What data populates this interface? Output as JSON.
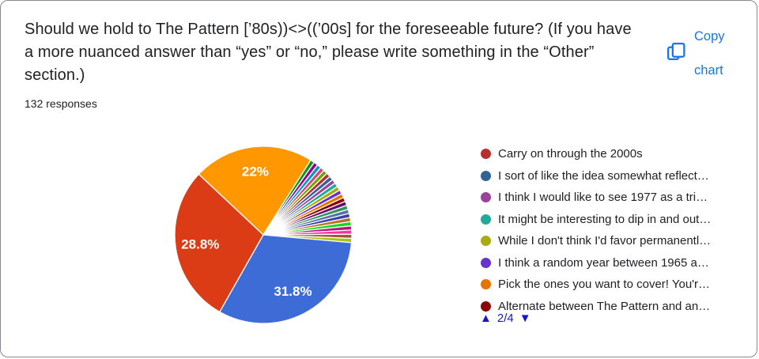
{
  "header": {
    "title_lines": [
      "Should we hold to The Pattern [’80s))<>((’00s]  for the foreseeable future? (If you have",
      "a more nuanced answer than “yes” or “no,” please write something in the “Other”",
      "section.)"
    ],
    "responses_label": "132 responses",
    "copy_chart_label": "Copy chart"
  },
  "chart_data": {
    "type": "pie",
    "title": "Should we hold to The Pattern [’80s))<>((’00s]  for the foreseeable future? (If you have a more nuanced answer than “yes” or “no,” please write something in the “Other” section.)",
    "total_responses": 132,
    "legend_position": "right",
    "label_color": "#ffffff",
    "start_angle_deg": -46.8,
    "slices": [
      {
        "pct": 22.0,
        "color": "#FF9800",
        "label_shown": "22%"
      },
      {
        "pct": 0.7565,
        "color": "#109618"
      },
      {
        "pct": 0.7565,
        "color": "#990099"
      },
      {
        "pct": 0.7565,
        "color": "#0099C6"
      },
      {
        "pct": 0.7565,
        "color": "#DD4477"
      },
      {
        "pct": 0.7565,
        "color": "#66AA00"
      },
      {
        "pct": 0.7565,
        "color": "#B82E2E"
      },
      {
        "pct": 0.7565,
        "color": "#316395"
      },
      {
        "pct": 0.7565,
        "color": "#994499"
      },
      {
        "pct": 0.7565,
        "color": "#22AA99"
      },
      {
        "pct": 0.7565,
        "color": "#AAAA11"
      },
      {
        "pct": 0.7565,
        "color": "#6633CC"
      },
      {
        "pct": 0.7565,
        "color": "#E67300"
      },
      {
        "pct": 0.7565,
        "color": "#8B0707"
      },
      {
        "pct": 0.7565,
        "color": "#651067"
      },
      {
        "pct": 0.7565,
        "color": "#329262"
      },
      {
        "pct": 0.7565,
        "color": "#5574A6"
      },
      {
        "pct": 0.7565,
        "color": "#3B3EAC"
      },
      {
        "pct": 0.7565,
        "color": "#B77322"
      },
      {
        "pct": 0.7565,
        "color": "#16D620"
      },
      {
        "pct": 0.7565,
        "color": "#B91383"
      },
      {
        "pct": 0.7565,
        "color": "#F4359E"
      },
      {
        "pct": 0.7565,
        "color": "#9C5935"
      },
      {
        "pct": 0.7565,
        "color": "#A9C413"
      },
      {
        "pct": 31.8,
        "color": "#3D6CD7",
        "label_shown": "31.8%"
      },
      {
        "pct": 28.8,
        "color": "#DB3C16",
        "label_shown": "28.8%"
      }
    ],
    "legend": {
      "page_label": "2/4",
      "up_icon": "▲",
      "down_icon": "▼",
      "items": [
        {
          "label": "Carry on through the 2000s",
          "color": "#B82E2E"
        },
        {
          "label": "I sort of like the idea somewhat reflect…",
          "color": "#316395"
        },
        {
          "label": "I think I would like to see 1977 as a tri…",
          "color": "#994499"
        },
        {
          "label": "It might be interesting to dip in and out…",
          "color": "#22AA99"
        },
        {
          "label": "While I don't think I'd favor permanentl…",
          "color": "#AAAA11"
        },
        {
          "label": "I think a random year between 1965 a…",
          "color": "#6633CC"
        },
        {
          "label": "Pick the ones you want to cover! You'r…",
          "color": "#E67300"
        },
        {
          "label": "Alternate between The Pattern and an…",
          "color": "#8B0707"
        }
      ]
    },
    "accent_colors": {
      "link_blue": "#1a73e8",
      "pager_blue": "#1717c9"
    }
  }
}
